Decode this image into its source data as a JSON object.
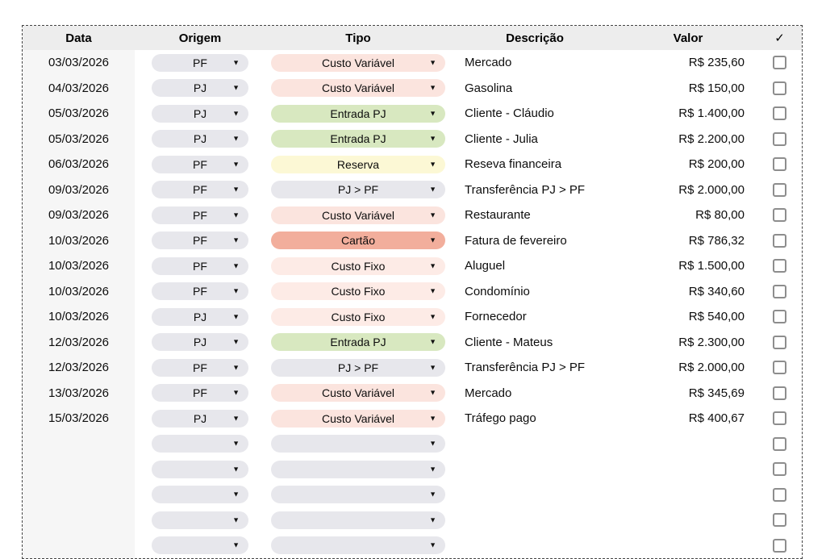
{
  "table": {
    "columns": [
      {
        "label": "Data"
      },
      {
        "label": "Origem"
      },
      {
        "label": "Tipo"
      },
      {
        "label": "Descrição"
      },
      {
        "label": "Valor"
      },
      {
        "label": "✓"
      }
    ],
    "rows": [
      {
        "data": "03/03/2026",
        "origem": "PF",
        "tipo": "Custo Variável",
        "tipo_key": "custo_variavel",
        "descricao": "Mercado",
        "valor": "R$ 235,60",
        "checked": false
      },
      {
        "data": "04/03/2026",
        "origem": "PJ",
        "tipo": "Custo Variável",
        "tipo_key": "custo_variavel",
        "descricao": "Gasolina",
        "valor": "R$ 150,00",
        "checked": false
      },
      {
        "data": "05/03/2026",
        "origem": "PJ",
        "tipo": "Entrada PJ",
        "tipo_key": "entrada_pj",
        "descricao": "Cliente - Cláudio",
        "valor": "R$ 1.400,00",
        "checked": false
      },
      {
        "data": "05/03/2026",
        "origem": "PJ",
        "tipo": "Entrada PJ",
        "tipo_key": "entrada_pj",
        "descricao": "Cliente - Julia",
        "valor": "R$ 2.200,00",
        "checked": false
      },
      {
        "data": "06/03/2026",
        "origem": "PF",
        "tipo": "Reserva",
        "tipo_key": "reserva",
        "descricao": "Reseva financeira",
        "valor": "R$ 200,00",
        "checked": false
      },
      {
        "data": "09/03/2026",
        "origem": "PF",
        "tipo": "PJ > PF",
        "tipo_key": "pj_pf",
        "descricao": "Transferência PJ > PF",
        "valor": "R$ 2.000,00",
        "checked": false
      },
      {
        "data": "09/03/2026",
        "origem": "PF",
        "tipo": "Custo Variável",
        "tipo_key": "custo_variavel",
        "descricao": "Restaurante",
        "valor": "R$ 80,00",
        "checked": false
      },
      {
        "data": "10/03/2026",
        "origem": "PF",
        "tipo": "Cartão",
        "tipo_key": "cartao",
        "descricao": "Fatura de fevereiro",
        "valor": "R$ 786,32",
        "checked": false
      },
      {
        "data": "10/03/2026",
        "origem": "PF",
        "tipo": "Custo Fixo",
        "tipo_key": "custo_fixo",
        "descricao": "Aluguel",
        "valor": "R$ 1.500,00",
        "checked": false
      },
      {
        "data": "10/03/2026",
        "origem": "PF",
        "tipo": "Custo Fixo",
        "tipo_key": "custo_fixo",
        "descricao": "Condomínio",
        "valor": "R$ 340,60",
        "checked": false
      },
      {
        "data": "10/03/2026",
        "origem": "PJ",
        "tipo": "Custo Fixo",
        "tipo_key": "custo_fixo",
        "descricao": "Fornecedor",
        "valor": "R$ 540,00",
        "checked": false
      },
      {
        "data": "12/03/2026",
        "origem": "PJ",
        "tipo": "Entrada PJ",
        "tipo_key": "entrada_pj",
        "descricao": "Cliente - Mateus",
        "valor": "R$ 2.300,00",
        "checked": false
      },
      {
        "data": "12/03/2026",
        "origem": "PF",
        "tipo": "PJ > PF",
        "tipo_key": "pj_pf",
        "descricao": "Transferência PJ > PF",
        "valor": "R$ 2.000,00",
        "checked": false
      },
      {
        "data": "13/03/2026",
        "origem": "PF",
        "tipo": "Custo Variável",
        "tipo_key": "custo_variavel",
        "descricao": "Mercado",
        "valor": "R$ 345,69",
        "checked": false
      },
      {
        "data": "15/03/2026",
        "origem": "PJ",
        "tipo": "Custo Variável",
        "tipo_key": "custo_variavel",
        "descricao": "Tráfego pago",
        "valor": "R$ 400,67",
        "checked": false
      }
    ],
    "empty_row_count": 5,
    "dropdown_arrow_icon": "▼"
  },
  "colors": {
    "header_bg": "#ededed",
    "data_col_bg": "#f6f6f6",
    "origem_pill": "#e7e7ec",
    "custo_variavel": "#fbe4de",
    "custo_fixo": "#fdebe6",
    "entrada_pj": "#d8e8c0",
    "reserva": "#fcf8d5",
    "pj_pf": "#e7e7ec",
    "cartao": "#f2ae9c",
    "checkbox_border": "#8d8d8d"
  }
}
